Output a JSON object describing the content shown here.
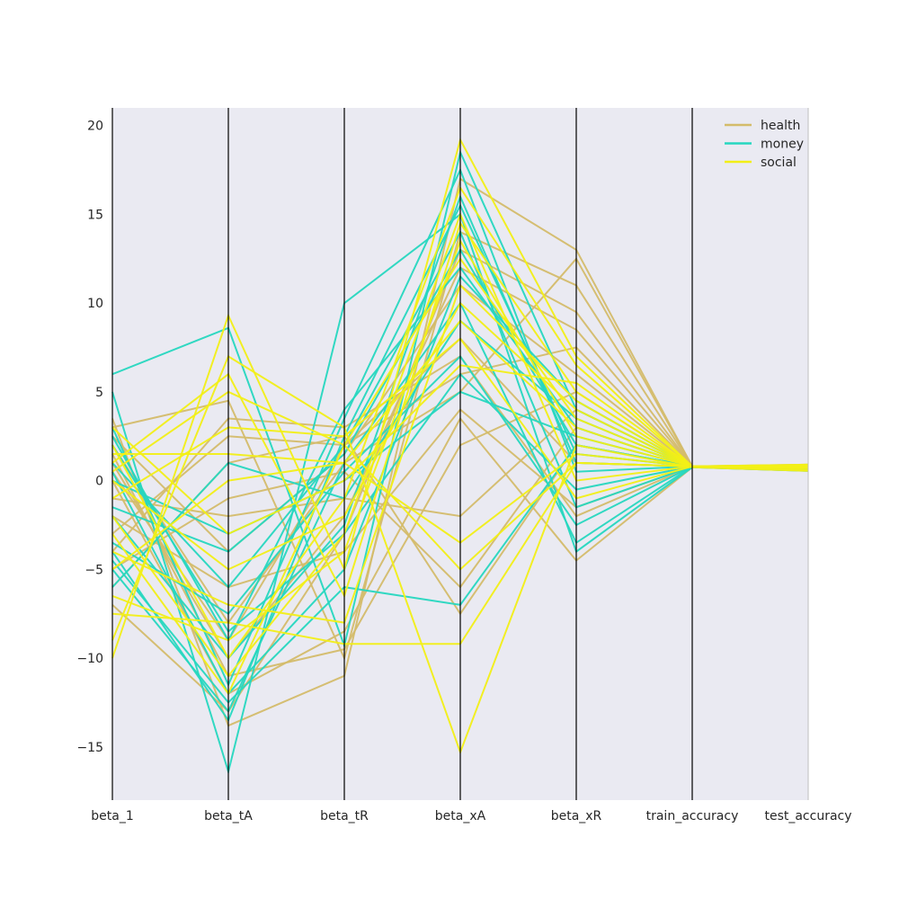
{
  "chart_data": {
    "type": "line",
    "subtype": "parallel-coordinates",
    "title": "",
    "dimensions": [
      "beta_1",
      "beta_tA",
      "beta_tR",
      "beta_xA",
      "beta_xR",
      "train_accuracy",
      "test_accuracy"
    ],
    "ylim": [
      -18,
      21
    ],
    "yticks": [
      -15,
      -10,
      -5,
      0,
      5,
      10,
      15,
      20
    ],
    "ytick_labels": [
      "−15",
      "−10",
      "−5",
      "0",
      "5",
      "10",
      "15",
      "20"
    ],
    "grid": false,
    "legend": {
      "position": "top-right"
    },
    "colors": {
      "health": "#d4bc6a",
      "money": "#26d7bf",
      "social": "#f2ef16",
      "background": "#eaeaf2",
      "axis": "#000000"
    },
    "series": [
      {
        "name": "health",
        "color": "#d4bc6a",
        "lines": [
          [
            3.5,
            -13.8,
            -11.0,
            17.0,
            13.0,
            0.8,
            0.7
          ],
          [
            3.0,
            4.5,
            -10.0,
            14.0,
            11.0,
            0.8,
            0.75
          ],
          [
            -7.0,
            -13.0,
            -3.0,
            13.0,
            9.5,
            0.8,
            0.7
          ],
          [
            1.0,
            -10.0,
            -2.0,
            12.0,
            8.5,
            0.8,
            0.72
          ],
          [
            -3.0,
            2.5,
            2.0,
            6.0,
            7.5,
            0.8,
            0.8
          ],
          [
            2.0,
            -8.0,
            1.0,
            5.0,
            12.5,
            0.8,
            0.7
          ],
          [
            -5.0,
            -1.0,
            0.5,
            -6.0,
            3.0,
            0.8,
            0.75
          ],
          [
            0.0,
            -12.0,
            -8.5,
            3.5,
            -4.5,
            0.75,
            0.55
          ],
          [
            -6.0,
            1.0,
            2.5,
            -7.5,
            2.0,
            0.8,
            0.7
          ],
          [
            -2.0,
            -6.0,
            -4.0,
            4.0,
            -1.5,
            0.8,
            0.78
          ],
          [
            2.5,
            -4.0,
            1.5,
            11.0,
            6.0,
            0.8,
            0.82
          ],
          [
            -4.0,
            3.5,
            3.0,
            7.0,
            -2.0,
            0.8,
            0.85
          ],
          [
            1.5,
            -11.0,
            -9.5,
            2.0,
            5.0,
            0.8,
            0.7
          ],
          [
            -1.0,
            -2.0,
            -1.0,
            -2.0,
            4.0,
            0.8,
            0.9
          ],
          [
            0.5,
            -9.0,
            2.0,
            8.0,
            1.0,
            0.8,
            0.8
          ]
        ]
      },
      {
        "name": "money",
        "color": "#26d7bf",
        "lines": [
          [
            6.0,
            8.6,
            -9.3,
            18.5,
            4.0,
            0.8,
            0.65
          ],
          [
            5.0,
            -16.4,
            10.0,
            15.0,
            -4.0,
            0.75,
            0.55
          ],
          [
            -4.5,
            -12.5,
            -6.0,
            -7.0,
            2.0,
            0.8,
            0.7
          ],
          [
            2.5,
            -9.0,
            4.0,
            12.0,
            3.0,
            0.8,
            0.72
          ],
          [
            -5.0,
            -13.0,
            1.0,
            10.0,
            -3.5,
            0.8,
            0.7
          ],
          [
            0.0,
            -3.0,
            0.0,
            5.0,
            2.5,
            0.8,
            0.75
          ],
          [
            -2.0,
            -10.0,
            -2.5,
            16.0,
            1.0,
            0.8,
            0.7
          ],
          [
            1.0,
            -6.0,
            2.0,
            14.0,
            -1.5,
            0.8,
            0.78
          ],
          [
            -6.0,
            1.0,
            -1.0,
            9.0,
            3.5,
            0.8,
            0.72
          ],
          [
            3.0,
            -11.5,
            3.5,
            17.5,
            0.5,
            0.8,
            0.68
          ],
          [
            -3.5,
            -7.5,
            0.5,
            7.0,
            -2.5,
            0.8,
            0.74
          ],
          [
            0.5,
            -12.0,
            -5.0,
            11.5,
            4.5,
            0.8,
            0.7
          ],
          [
            -1.5,
            -4.0,
            1.5,
            13.0,
            2.0,
            0.8,
            0.76
          ],
          [
            2.0,
            -8.5,
            -3.0,
            6.0,
            -0.5,
            0.8,
            0.72
          ],
          [
            -4.0,
            -13.5,
            2.5,
            15.5,
            1.5,
            0.8,
            0.66
          ]
        ]
      },
      {
        "name": "social",
        "color": "#f2ef16",
        "lines": [
          [
            -10.0,
            9.3,
            -5.0,
            19.2,
            7.0,
            0.8,
            0.6
          ],
          [
            -9.0,
            7.0,
            3.0,
            -15.3,
            2.0,
            0.75,
            0.55
          ],
          [
            -7.5,
            -8.0,
            -9.2,
            -9.2,
            1.0,
            0.8,
            0.7
          ],
          [
            1.0,
            6.0,
            -6.5,
            14.5,
            5.0,
            0.8,
            0.8
          ],
          [
            -3.0,
            -12.0,
            2.0,
            12.5,
            3.5,
            0.8,
            0.9
          ],
          [
            0.0,
            -5.0,
            -2.0,
            10.0,
            4.0,
            0.8,
            0.85
          ],
          [
            -5.0,
            0.0,
            1.0,
            -3.5,
            1.5,
            0.8,
            0.75
          ],
          [
            2.0,
            -10.0,
            -1.0,
            16.5,
            6.5,
            0.8,
            0.8
          ],
          [
            -1.0,
            3.0,
            2.5,
            8.0,
            -1.0,
            0.8,
            0.82
          ],
          [
            -6.5,
            -9.0,
            -4.0,
            13.5,
            2.5,
            0.8,
            0.7
          ],
          [
            3.0,
            -3.0,
            0.0,
            6.5,
            5.5,
            0.8,
            0.88
          ],
          [
            -2.0,
            -11.0,
            -3.0,
            15.0,
            0.0,
            0.8,
            0.78
          ],
          [
            1.5,
            1.5,
            1.0,
            9.0,
            3.0,
            0.8,
            0.84
          ],
          [
            -4.0,
            -7.0,
            -8.0,
            11.0,
            4.5,
            0.8,
            0.72
          ],
          [
            0.5,
            5.0,
            2.0,
            -5.0,
            1.0,
            0.8,
            0.86
          ]
        ]
      }
    ]
  }
}
